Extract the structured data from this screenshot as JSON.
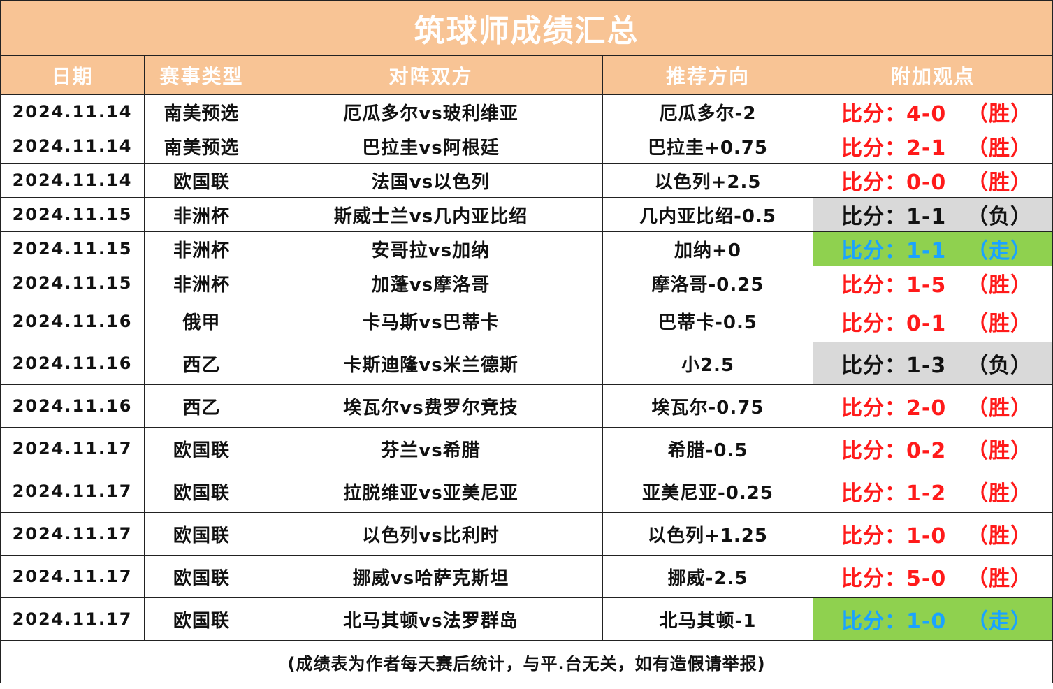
{
  "title": "筑球师成绩汇总",
  "headers": [
    "日期",
    "赛事类型",
    "对阵双方",
    "推荐方向",
    "附加观点"
  ],
  "rows": [
    {
      "date": "2024.11.14",
      "league": "南美预选",
      "match": "厄瓜多尔vs玻利维亚",
      "pick": "厄瓜多尔-2",
      "score": "比分：4-0",
      "outcome": "（胜）",
      "status": "win"
    },
    {
      "date": "2024.11.14",
      "league": "南美预选",
      "match": "巴拉圭vs阿根廷",
      "pick": "巴拉圭+0.75",
      "score": "比分：2-1",
      "outcome": "（胜）",
      "status": "win"
    },
    {
      "date": "2024.11.14",
      "league": "欧国联",
      "match": "法国vs以色列",
      "pick": "以色列+2.5",
      "score": "比分：0-0",
      "outcome": "（胜）",
      "status": "win"
    },
    {
      "date": "2024.11.15",
      "league": "非洲杯",
      "match": "斯威士兰vs几内亚比绍",
      "pick": "几内亚比绍-0.5",
      "score": "比分：1-1",
      "outcome": "（负）",
      "status": "loss"
    },
    {
      "date": "2024.11.15",
      "league": "非洲杯",
      "match": "安哥拉vs加纳",
      "pick": "加纳+0",
      "score": "比分：1-1",
      "outcome": "（走）",
      "status": "push"
    },
    {
      "date": "2024.11.15",
      "league": "非洲杯",
      "match": "加蓬vs摩洛哥",
      "pick": "摩洛哥-0.25",
      "score": "比分：1-5",
      "outcome": "（胜）",
      "status": "win"
    },
    {
      "date": "2024.11.16",
      "league": "俄甲",
      "match": "卡马斯vs巴蒂卡",
      "pick": "巴蒂卡-0.5",
      "score": "比分：0-1",
      "outcome": "（胜）",
      "status": "win"
    },
    {
      "date": "2024.11.16",
      "league": "西乙",
      "match": "卡斯迪隆vs米兰德斯",
      "pick": "小2.5",
      "score": "比分：1-3",
      "outcome": "（负）",
      "status": "loss"
    },
    {
      "date": "2024.11.16",
      "league": "西乙",
      "match": "埃瓦尔vs费罗尔竞技",
      "pick": "埃瓦尔-0.75",
      "score": "比分：2-0",
      "outcome": "（胜）",
      "status": "win"
    },
    {
      "date": "2024.11.17",
      "league": "欧国联",
      "match": "芬兰vs希腊",
      "pick": "希腊-0.5",
      "score": "比分：0-2",
      "outcome": "（胜）",
      "status": "win"
    },
    {
      "date": "2024.11.17",
      "league": "欧国联",
      "match": "拉脱维亚vs亚美尼亚",
      "pick": "亚美尼亚-0.25",
      "score": "比分：1-2",
      "outcome": "（胜）",
      "status": "win"
    },
    {
      "date": "2024.11.17",
      "league": "欧国联",
      "match": "以色列vs比利时",
      "pick": "以色列+1.25",
      "score": "比分：1-0",
      "outcome": "（胜）",
      "status": "win"
    },
    {
      "date": "2024.11.17",
      "league": "欧国联",
      "match": "挪威vs哈萨克斯坦",
      "pick": "挪威-2.5",
      "score": "比分：5-0",
      "outcome": "（胜）",
      "status": "win"
    },
    {
      "date": "2024.11.17",
      "league": "欧国联",
      "match": "北马其顿vs法罗群岛",
      "pick": "北马其顿-1",
      "score": "比分：1-0",
      "outcome": "（走）",
      "status": "push"
    }
  ],
  "footer": "(成绩表为作者每天赛后统计，与平.台无关，如有造假请举报)",
  "colors": {
    "header_bg": "#f8c495",
    "win": "#ff1a1a",
    "loss_bg": "#d9d9d9",
    "push_bg": "#8fd14f",
    "push_text": "#1aa3ff"
  }
}
